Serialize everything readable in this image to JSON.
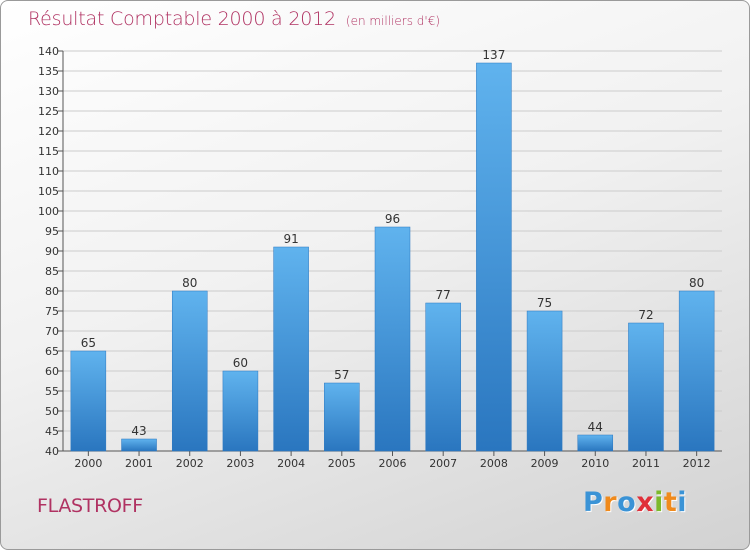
{
  "header": {
    "title": "Résultat Comptable 2000 à 2012",
    "unit": "(en milliers d'€)"
  },
  "footer": {
    "commune": "FLASTROFF",
    "logo_letters": [
      "P",
      "r",
      "o",
      "x",
      "i",
      "t",
      "i"
    ],
    "logo_colors": [
      "#3a93d6",
      "#f08a1c",
      "#3a93d6",
      "#e0303a",
      "#7cb92b",
      "#f08a1c",
      "#3a93d6"
    ]
  },
  "colors": {
    "title": "#b03262",
    "bar": "#4a9fe0",
    "bar_dark": "#2a76bf",
    "bar_light": "#60b3ee",
    "grid": "#cccccc"
  },
  "chart_data": {
    "type": "bar",
    "categories": [
      "2000",
      "2001",
      "2002",
      "2003",
      "2004",
      "2005",
      "2006",
      "2007",
      "2008",
      "2009",
      "2010",
      "2011",
      "2012"
    ],
    "values": [
      65,
      43,
      80,
      60,
      91,
      57,
      96,
      77,
      137,
      75,
      44,
      72,
      80
    ],
    "ylim": [
      40,
      140
    ],
    "yticks": [
      40,
      45,
      50,
      55,
      60,
      65,
      70,
      75,
      80,
      85,
      90,
      95,
      100,
      105,
      110,
      115,
      120,
      125,
      130,
      135,
      140
    ],
    "grid": true,
    "legend": "none"
  }
}
